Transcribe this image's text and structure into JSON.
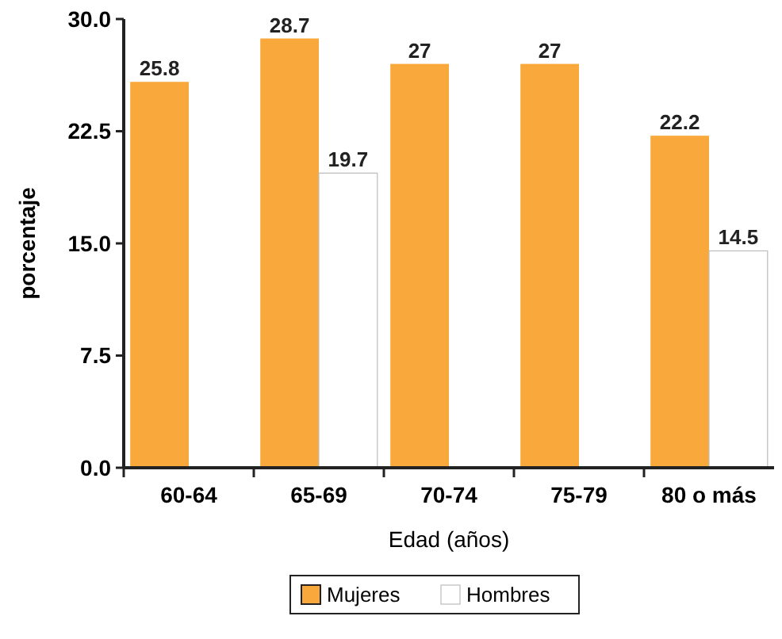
{
  "chart_data": {
    "type": "bar",
    "xlabel": "Edad (años)",
    "ylabel": "porcentaje",
    "categories": [
      "60-64",
      "65-69",
      "70-74",
      "75-79",
      "80 o más"
    ],
    "series": [
      {
        "name": "Mujeres",
        "color": "#f9a93b",
        "values": [
          25.8,
          28.7,
          27,
          27,
          22.2
        ]
      },
      {
        "name": "Hombres",
        "color": "#ffffff",
        "values": [
          null,
          19.7,
          null,
          null,
          14.5
        ]
      }
    ],
    "ylim": [
      0,
      30
    ],
    "yticks": [
      {
        "value": 0,
        "label": "0.0"
      },
      {
        "value": 7.5,
        "label": "7.5"
      },
      {
        "value": 15,
        "label": "15.0"
      },
      {
        "value": 22.5,
        "label": "22.5"
      },
      {
        "value": 30,
        "label": "30.0"
      }
    ],
    "data_labels": true,
    "grid": false,
    "legend": "bottom"
  }
}
